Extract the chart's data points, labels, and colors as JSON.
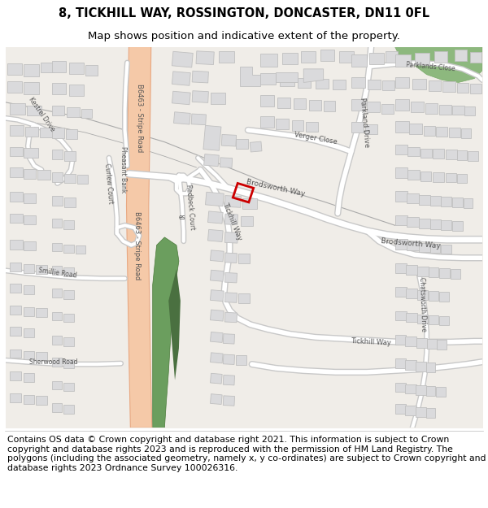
{
  "title": "8, TICKHILL WAY, ROSSINGTON, DONCASTER, DN11 0FL",
  "subtitle": "Map shows position and indicative extent of the property.",
  "footer": "Contains OS data © Crown copyright and database right 2021. This information is subject to Crown copyright and database rights 2023 and is reproduced with the permission of HM Land Registry. The polygons (including the associated geometry, namely x, y co-ordinates) are subject to Crown copyright and database rights 2023 Ordnance Survey 100026316.",
  "map_bg": "#f0ede8",
  "road_major_fill": "#f5c9a8",
  "road_major_outline": "#e8a882",
  "road_minor_fill": "#ffffff",
  "road_minor_outline": "#c8c8c8",
  "road_minor_outline2": "#d8d8d8",
  "building_fill": "#dadadc",
  "building_edge": "#c0c0c0",
  "green_dark": "#6b9e5e",
  "green_light": "#8db87e",
  "rail_color": "#888888",
  "highlight": "#cc0000",
  "text_color": "#555555",
  "header_bg": "#ffffff",
  "footer_bg": "#ffffff",
  "title_fontsize": 10.5,
  "subtitle_fontsize": 9.5,
  "footer_fontsize": 7.8
}
